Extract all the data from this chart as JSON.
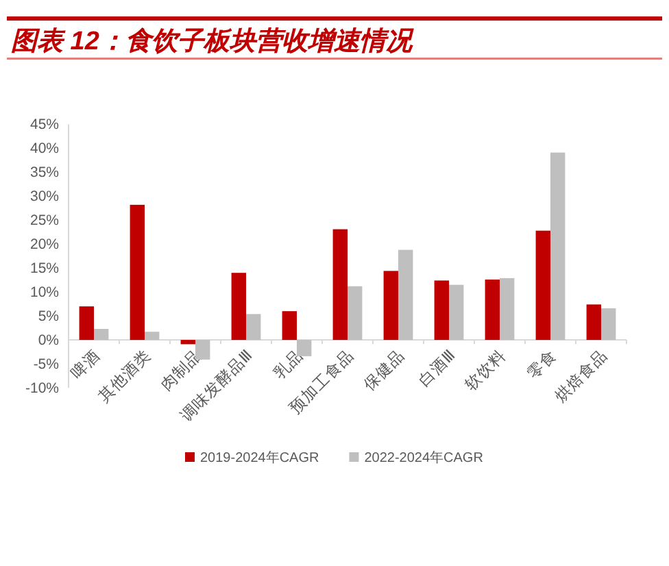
{
  "chart_data": {
    "type": "bar",
    "title": "图表 12：食饮子板块营收增速情况",
    "categories": [
      "啤酒",
      "其他酒类",
      "肉制品",
      "调味发酵品Ⅲ",
      "乳品",
      "预加工食品",
      "保健品",
      "白酒Ⅲ",
      "软饮料",
      "零食",
      "烘焙食品"
    ],
    "series": [
      {
        "name": "2019-2024年CAGR",
        "color": "#c00000",
        "values": [
          7.0,
          28.2,
          -0.9,
          14.0,
          6.0,
          23.1,
          14.4,
          12.4,
          12.6,
          22.8,
          7.4
        ]
      },
      {
        "name": "2022-2024年CAGR",
        "color": "#bfbfbf",
        "values": [
          2.3,
          1.7,
          -4.1,
          5.4,
          -3.4,
          11.2,
          18.8,
          11.5,
          12.9,
          39.1,
          6.6
        ]
      }
    ],
    "ylim": [
      -10,
      45
    ],
    "yticks": [
      {
        "value": -10,
        "label": "-10%"
      },
      {
        "value": -5,
        "label": "-5%"
      },
      {
        "value": 0,
        "label": "0%"
      },
      {
        "value": 5,
        "label": "5%"
      },
      {
        "value": 10,
        "label": "10%"
      },
      {
        "value": 15,
        "label": "15%"
      },
      {
        "value": 20,
        "label": "20%"
      },
      {
        "value": 25,
        "label": "25%"
      },
      {
        "value": 30,
        "label": "30%"
      },
      {
        "value": 35,
        "label": "35%"
      },
      {
        "value": 40,
        "label": "40%"
      },
      {
        "value": 45,
        "label": "45%"
      }
    ],
    "legend": "bottom"
  }
}
